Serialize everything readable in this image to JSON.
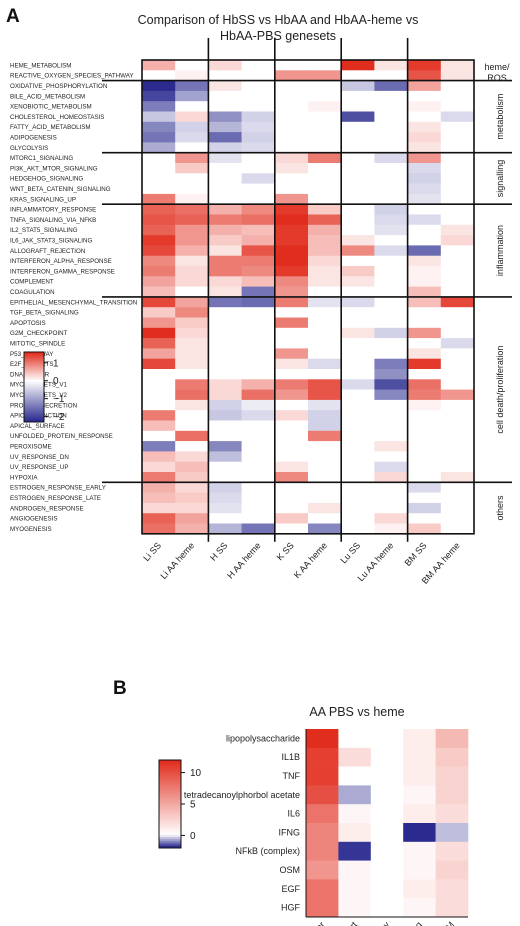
{
  "panelA": {
    "letter": "A",
    "title_line1": "Comparison of HbSS vs HbAA and HbAA-heme vs",
    "title_line2": "HbAA-PBS genesets"
  },
  "panelB": {
    "letter": "B",
    "title": "AA PBS vs heme"
  },
  "colors": {
    "low": "#2a2a8f",
    "mid": "#ffffff",
    "high": "#e12d1e",
    "grid": "#111111"
  },
  "chart_data": [
    {
      "type": "heatmap",
      "title": "Comparison of HbSS vs HbAA and HbAA-heme vs HbAA-PBS genesets",
      "columns": [
        "Li SS",
        "Li AA heme",
        "H SS",
        "H AA heme",
        "K SS",
        "K AA heme",
        "Lu SS",
        "Lu AA heme",
        "BM SS",
        "BM AA heme"
      ],
      "column_groups": [
        [
          0,
          1
        ],
        [
          2,
          3
        ],
        [
          4,
          5
        ],
        [
          6,
          7
        ],
        [
          8,
          9
        ]
      ],
      "rows": [
        "HEME_METABOLISM",
        "REACTIVE_OXYGEN_SPECIES_PATHWAY",
        "OXIDATIVE_PHOSPHORYLATION",
        "BILE_ACID_METABOLISM",
        "XENOBIOTIC_METABOLISM",
        "CHOLESTEROL_HOMEOSTASIS",
        "FATTY_ACID_METABOLISM",
        "ADIPOGENESIS",
        "GLYCOLYSIS",
        "MTORC1_SIGNALING",
        "PI3K_AKT_MTOR_SIGNALING",
        "HEDGEHOG_SIGNALING",
        "WNT_BETA_CATENIN_SIGNALING",
        "KRAS_SIGNALING_UP",
        "INFLAMMATORY_RESPONSE",
        "TNFA_SIGNALING_VIA_NFKB",
        "IL2_STAT5_SIGNALING",
        "IL6_JAK_STAT3_SIGNALING",
        "ALLOGRAFT_REJECTION",
        "INTERFERON_ALPHA_RESPONSE",
        "INTERFERON_GAMMA_RESPONSE",
        "COMPLEMENT",
        "COAGULATION",
        "EPITHELIAL_MESENCHYMAL_TRANSITION",
        "TGF_BETA_SIGNALING",
        "APOPTOSIS",
        "G2M_CHECKPOINT",
        "MITOTIC_SPINDLE",
        "P53_PATHWAY",
        "E2F_TARGETS",
        "DNA_REPAIR",
        "MYC_TARGETS_V1",
        "MYC_TARGETS_V2",
        "PROTEIN_SECRETION",
        "APICAL_JUNCTION",
        "APICAL_SURFACE",
        "UNFOLDED_PROTEIN_RESPONSE",
        "PEROXISOME",
        "UV_RESPONSE_DN",
        "UV_RESPONSE_UP",
        "HYPOXIA",
        "ESTROGEN_RESPONSE_EARLY",
        "ESTROGEN_RESPONSE_LATE",
        "ANDROGEN_RESPONSE",
        "ANGIOGENESIS",
        "MYOGENESIS"
      ],
      "row_groups": [
        {
          "label": "heme/ ROS",
          "rows": [
            0,
            1
          ]
        },
        {
          "label": "metabolism",
          "rows": [
            2,
            8
          ]
        },
        {
          "label": "signalling",
          "rows": [
            9,
            13
          ]
        },
        {
          "label": "inflammation",
          "rows": [
            14,
            22
          ]
        },
        {
          "label": "cell death/proliferation",
          "rows": [
            23,
            40
          ]
        },
        {
          "label": "others",
          "rows": [
            41,
            45
          ]
        }
      ],
      "colorbar": {
        "ticks": [
          1,
          0,
          -1,
          -2
        ],
        "range": [
          -2.3,
          1.6
        ]
      },
      "values": [
        [
          0.6,
          0,
          0.3,
          0,
          0,
          0,
          1.6,
          0.2,
          1.5,
          0.2
        ],
        [
          0,
          0.1,
          0,
          0,
          0.8,
          0.8,
          0,
          0,
          1.3,
          0.2
        ],
        [
          -2.3,
          -1.5,
          0.2,
          0,
          0,
          0,
          -0.6,
          -1.6,
          0.7,
          0
        ],
        [
          -2.0,
          -1.0,
          0,
          0,
          0,
          0,
          0,
          0,
          0,
          0
        ],
        [
          -1.4,
          0,
          0,
          0,
          0,
          0.1,
          0,
          0,
          0.1,
          0
        ],
        [
          -0.6,
          0.3,
          -1.2,
          -0.5,
          0,
          0,
          -1.9,
          0,
          0,
          -0.4
        ],
        [
          -1.3,
          -0.5,
          -0.8,
          -0.4,
          0,
          0,
          0,
          0,
          0.2,
          0
        ],
        [
          -1.5,
          -0.4,
          -1.6,
          -0.5,
          0,
          0,
          0,
          0,
          0.3,
          0
        ],
        [
          -0.9,
          0,
          -0.5,
          -0.4,
          0,
          0,
          0,
          0,
          0.2,
          0
        ],
        [
          0,
          0.8,
          -0.3,
          0,
          0.3,
          1.0,
          0,
          -0.4,
          0.8,
          0
        ],
        [
          0,
          0.4,
          0,
          0,
          0.2,
          0,
          0,
          0,
          -0.4,
          0
        ],
        [
          0,
          0,
          0,
          -0.4,
          0,
          0,
          0,
          0,
          -0.5,
          0
        ],
        [
          0,
          0,
          0,
          0,
          0,
          0,
          0,
          0,
          -0.4,
          0
        ],
        [
          1.0,
          0.1,
          0,
          0,
          0.8,
          0,
          0,
          0,
          -0.3,
          0
        ],
        [
          1.2,
          1.1,
          0.6,
          0.9,
          1.5,
          0.4,
          0,
          -0.5,
          0,
          0
        ],
        [
          1.3,
          1.2,
          1.0,
          1.1,
          1.6,
          1.2,
          0,
          -0.4,
          -0.4,
          0
        ],
        [
          1.2,
          0.8,
          0.6,
          0.5,
          1.5,
          0.6,
          0,
          -0.3,
          0,
          0.2
        ],
        [
          1.5,
          0.8,
          0.4,
          0.6,
          1.5,
          0.5,
          0.2,
          0,
          0,
          0.3
        ],
        [
          1.4,
          0.6,
          0.2,
          1.3,
          1.6,
          0.5,
          0.9,
          -0.4,
          -1.6,
          0
        ],
        [
          0.9,
          0.2,
          1.0,
          1.0,
          1.6,
          0.3,
          0,
          0,
          0.2,
          0
        ],
        [
          1.0,
          0.3,
          1.0,
          0.9,
          1.5,
          0.2,
          0.4,
          0,
          0.1,
          0
        ],
        [
          0.7,
          0.3,
          0.3,
          0.5,
          0.9,
          0.2,
          0.2,
          0,
          0.1,
          0
        ],
        [
          0.5,
          0,
          0.2,
          -1.5,
          0.8,
          0,
          0,
          0,
          0.5,
          0
        ],
        [
          1.4,
          0.7,
          -1.5,
          -1.6,
          1.0,
          -0.3,
          -0.4,
          0,
          0.5,
          1.4
        ],
        [
          0.4,
          0.9,
          0,
          0,
          0,
          0,
          0,
          0,
          0,
          0
        ],
        [
          0.8,
          0.4,
          0,
          0,
          1.0,
          0,
          0,
          0,
          0,
          0
        ],
        [
          1.6,
          0.3,
          0,
          0,
          0,
          0,
          0.2,
          -0.5,
          0.8,
          0
        ],
        [
          1.2,
          0.2,
          0,
          0,
          0,
          0,
          0,
          0,
          0,
          -0.4
        ],
        [
          0.7,
          0.2,
          0,
          0,
          0.8,
          0,
          0,
          0,
          0.2,
          0
        ],
        [
          1.4,
          0.2,
          0,
          0,
          0.2,
          -0.4,
          0,
          -1.4,
          1.5,
          0
        ],
        [
          0,
          0,
          0,
          0,
          0,
          0,
          0,
          -1.2,
          0,
          0
        ],
        [
          0,
          1.0,
          0.3,
          0.6,
          1.0,
          1.3,
          -0.4,
          -1.9,
          1.1,
          0
        ],
        [
          0,
          1.1,
          0.3,
          1.1,
          0.8,
          1.3,
          0,
          -1.3,
          1.0,
          0.8
        ],
        [
          0,
          0.2,
          -0.5,
          -0.2,
          0,
          -0.3,
          0,
          0,
          0.1,
          0
        ],
        [
          1.0,
          0,
          -0.6,
          -0.4,
          0.3,
          -0.5,
          0,
          0,
          0,
          0
        ],
        [
          0.5,
          0,
          0,
          0,
          0,
          -0.5,
          0,
          0,
          0,
          0
        ],
        [
          0,
          1.1,
          0,
          0,
          0,
          1.0,
          0,
          0,
          0,
          0
        ],
        [
          -1.4,
          0,
          -1.3,
          0,
          0,
          0,
          0,
          0.2,
          0,
          0
        ],
        [
          0.5,
          0.3,
          -0.7,
          0,
          0,
          0,
          0,
          0,
          0,
          0
        ],
        [
          0.3,
          0.5,
          0,
          0,
          0.2,
          0,
          0,
          -0.4,
          0,
          0
        ],
        [
          1.0,
          0.4,
          0,
          0,
          0.9,
          0,
          0,
          0.3,
          0,
          0.2
        ],
        [
          0.6,
          0.3,
          -0.5,
          0,
          0,
          0,
          0,
          0,
          -0.4,
          0
        ],
        [
          0.5,
          0.4,
          -0.4,
          0,
          0,
          0,
          0,
          0,
          0,
          0
        ],
        [
          0.3,
          0.3,
          -0.3,
          0,
          0,
          0.2,
          0,
          0,
          -0.5,
          0
        ],
        [
          1.2,
          0.7,
          0,
          0,
          0.4,
          0,
          0,
          0.3,
          0,
          0
        ],
        [
          1.1,
          0.6,
          -0.8,
          -1.5,
          0,
          -1.3,
          0,
          0.1,
          0.4,
          0
        ]
      ]
    },
    {
      "type": "heatmap",
      "title": "AA PBS vs heme",
      "columns": [
        "Liver",
        "Heart",
        "Kidney",
        "Lung",
        "BM"
      ],
      "rows": [
        "lipopolysaccharide",
        "IL1B",
        "TNF",
        "tetradecanoylphorbol acetate",
        "IL6",
        "IFNG",
        "NFkB (complex)",
        "OSM",
        "EGF",
        "HGF"
      ],
      "colorbar": {
        "ticks": [
          10,
          5,
          0
        ],
        "range": [
          -2,
          12
        ]
      },
      "values": [
        [
          12,
          0,
          0,
          1,
          4
        ],
        [
          11,
          2,
          0,
          1,
          3
        ],
        [
          11,
          0,
          0,
          1,
          2.5
        ],
        [
          10,
          -0.8,
          0,
          0.5,
          2.5
        ],
        [
          8,
          0.5,
          0,
          1,
          2
        ],
        [
          7,
          1,
          0,
          -2,
          -0.6
        ],
        [
          7,
          -1.9,
          0,
          0.5,
          2
        ],
        [
          6,
          0.5,
          0,
          0.5,
          2.5
        ],
        [
          8,
          0.5,
          0,
          1,
          2
        ],
        [
          8,
          0.5,
          0,
          0.5,
          2
        ]
      ]
    }
  ]
}
